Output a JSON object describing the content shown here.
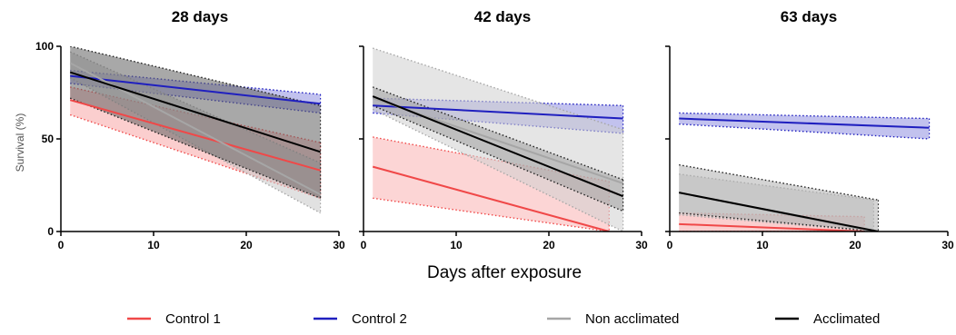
{
  "chart_data": {
    "type": "line",
    "xlabel": "Days after exposure",
    "ylabel": "Survival (%)",
    "xlim": [
      0,
      30
    ],
    "ylim": [
      0,
      100
    ],
    "x_ticks": [
      "0",
      "10",
      "20",
      "30"
    ],
    "y_ticks": [
      "0",
      "50",
      "100"
    ],
    "grid": false,
    "legend_position": "bottom",
    "legend": [
      {
        "name": "Control 1",
        "color": "#f04848"
      },
      {
        "name": "Control 2",
        "color": "#1f1fbf"
      },
      {
        "name": "Non acclimated",
        "color": "#a6a6a6"
      },
      {
        "name": "Acclimated",
        "color": "#000000"
      }
    ],
    "panels": [
      {
        "title": "28 days",
        "series": [
          {
            "name": "Control 1",
            "x": [
              1,
              28
            ],
            "y": [
              71,
              33
            ],
            "ci_upper": [
              78,
              48
            ],
            "ci_lower": [
              63,
              18
            ],
            "color": "#f04848",
            "fill": "#f7a5a5"
          },
          {
            "name": "Control 2",
            "x": [
              1,
              28
            ],
            "y": [
              84,
              69
            ],
            "ci_upper": [
              87,
              74
            ],
            "ci_lower": [
              80,
              64
            ],
            "color": "#1f1fbf",
            "fill": "#8f8fe0"
          },
          {
            "name": "Non acclimated",
            "x": [
              1,
              28
            ],
            "y": [
              91,
              20
            ],
            "ci_upper": [
              97,
              37
            ],
            "ci_lower": [
              83,
              10
            ],
            "color": "#a6a6a6",
            "fill": "#c8c8c8"
          },
          {
            "name": "Acclimated",
            "x": [
              1,
              28
            ],
            "y": [
              86,
              43
            ],
            "ci_upper": [
              100,
              68
            ],
            "ci_lower": [
              72,
              18
            ],
            "color": "#000000",
            "fill": "#606060"
          }
        ]
      },
      {
        "title": "42 days",
        "series": [
          {
            "name": "Control 1",
            "x": [
              1,
              26.5
            ],
            "y": [
              35,
              0
            ],
            "ci_upper": [
              51,
              27
            ],
            "ci_lower": [
              18,
              0
            ],
            "color": "#f04848",
            "fill": "#f9b3b3"
          },
          {
            "name": "Control 2",
            "x": [
              1,
              28
            ],
            "y": [
              68,
              61
            ],
            "ci_upper": [
              72,
              68
            ],
            "ci_lower": [
              64,
              53
            ],
            "color": "#1f1fbf",
            "fill": "#8f8fe0"
          },
          {
            "name": "Non acclimated",
            "x": [
              1,
              28
            ],
            "y": [
              72,
              26
            ],
            "ci_upper": [
              99,
              55
            ],
            "ci_lower": [
              66,
              0
            ],
            "color": "#a6a6a6",
            "fill": "#cfcfcf"
          },
          {
            "name": "Acclimated",
            "x": [
              1,
              28
            ],
            "y": [
              73,
              19
            ],
            "ci_upper": [
              78,
              28
            ],
            "ci_lower": [
              68,
              11
            ],
            "color": "#000000",
            "fill": "#a0a0a0"
          }
        ]
      },
      {
        "title": "63 days",
        "series": [
          {
            "name": "Control 1",
            "x": [
              1,
              21
            ],
            "y": [
              4,
              0
            ],
            "ci_upper": [
              10,
              8
            ],
            "ci_lower": [
              0,
              0
            ],
            "color": "#f04848",
            "fill": "#f7a5a5"
          },
          {
            "name": "Control 2",
            "x": [
              1,
              28
            ],
            "y": [
              61,
              56
            ],
            "ci_upper": [
              64,
              61
            ],
            "ci_lower": [
              58,
              50
            ],
            "color": "#1f1fbf",
            "fill": "#8f8fe0"
          },
          {
            "name": "Non acclimated",
            "x": [
              1,
              22
            ],
            "y": [
              21,
              0
            ],
            "ci_upper": [
              31,
              17
            ],
            "ci_lower": [
              9,
              0
            ],
            "color": "#a6a6a6",
            "fill": "#cfcfcf"
          },
          {
            "name": "Acclimated",
            "x": [
              1,
              22.5
            ],
            "y": [
              21,
              0
            ],
            "ci_upper": [
              36,
              17
            ],
            "ci_lower": [
              10,
              0
            ],
            "color": "#000000",
            "fill": "#b0b0b0"
          }
        ]
      }
    ]
  }
}
